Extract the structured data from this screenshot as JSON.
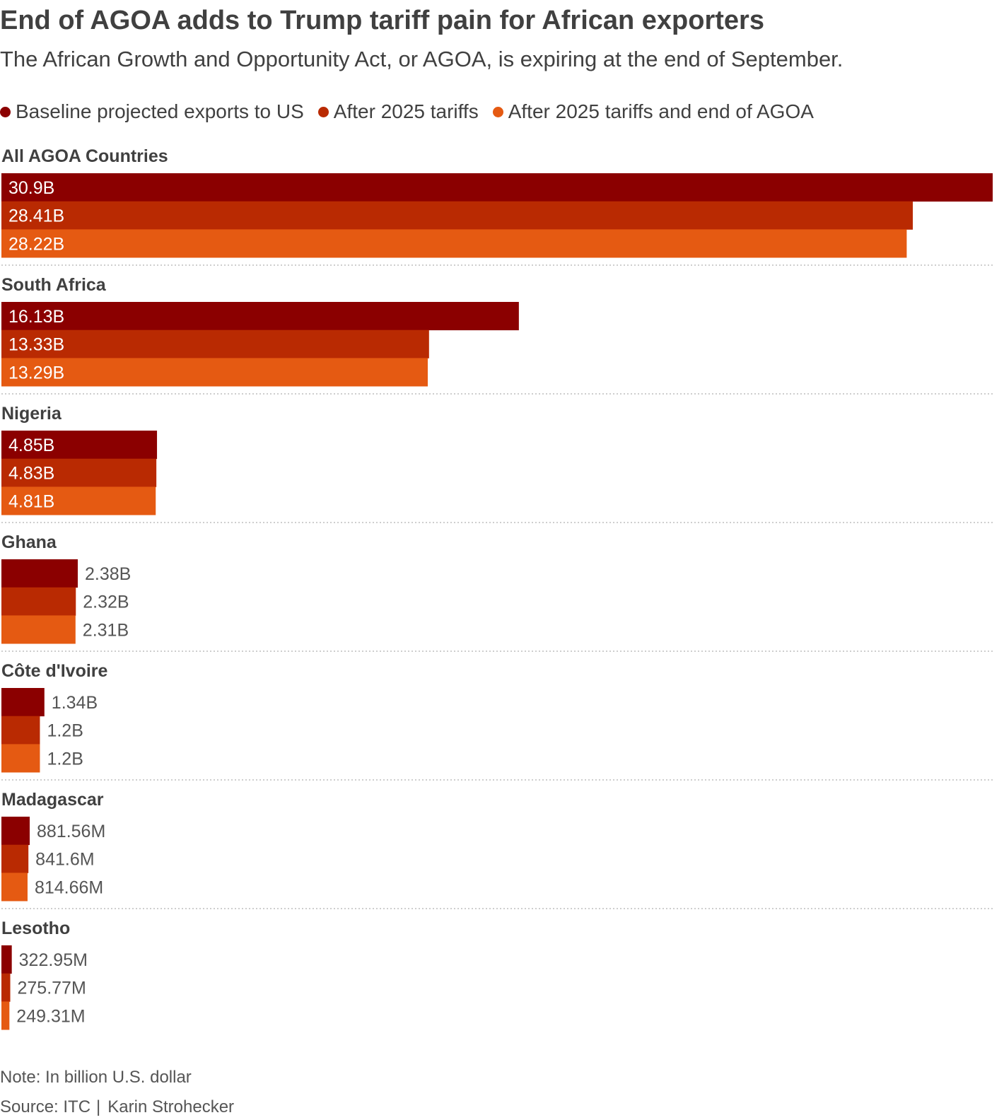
{
  "title": "End of AGOA adds to Trump tariff pain for African exporters",
  "subtitle": "The African Growth and Opportunity Act, or AGOA, is expiring at the end of September.",
  "legend": [
    {
      "label": "Baseline projected exports to US",
      "color": "#8b0000"
    },
    {
      "label": "After 2025 tariffs",
      "color": "#b92a02"
    },
    {
      "label": "After 2025 tariffs and end of AGOA",
      "color": "#e55a12"
    }
  ],
  "chart_data": {
    "type": "bar",
    "orientation": "horizontal",
    "unit": "billion U.S. dollar",
    "xlim": [
      0,
      30.9
    ],
    "series_names": [
      "Baseline projected exports to US",
      "After 2025 tariffs",
      "After 2025 tariffs and end of AGOA"
    ],
    "groups": [
      {
        "category": "All AGOA Countries",
        "values": [
          30.9,
          28.41,
          28.22
        ],
        "labels": [
          "30.9B",
          "28.41B",
          "28.22B"
        ]
      },
      {
        "category": "South Africa",
        "values": [
          16.13,
          13.33,
          13.29
        ],
        "labels": [
          "16.13B",
          "13.33B",
          "13.29B"
        ]
      },
      {
        "category": "Nigeria",
        "values": [
          4.85,
          4.83,
          4.81
        ],
        "labels": [
          "4.85B",
          "4.83B",
          "4.81B"
        ]
      },
      {
        "category": "Ghana",
        "values": [
          2.38,
          2.32,
          2.31
        ],
        "labels": [
          "2.38B",
          "2.32B",
          "2.31B"
        ]
      },
      {
        "category": "Côte d'Ivoire",
        "values": [
          1.34,
          1.2,
          1.2
        ],
        "labels": [
          "1.34B",
          "1.2B",
          "1.2B"
        ]
      },
      {
        "category": "Madagascar",
        "values": [
          0.88156,
          0.8416,
          0.81466
        ],
        "labels": [
          "881.56M",
          "841.6M",
          "814.66M"
        ]
      },
      {
        "category": "Lesotho",
        "values": [
          0.32295,
          0.27577,
          0.24931
        ],
        "labels": [
          "322.95M",
          "275.77M",
          "249.31M"
        ]
      }
    ]
  },
  "footer": {
    "note": "Note: In billion U.S. dollar",
    "source": "Source: ITC",
    "separator": "|",
    "credit": "Karin Strohecker"
  }
}
